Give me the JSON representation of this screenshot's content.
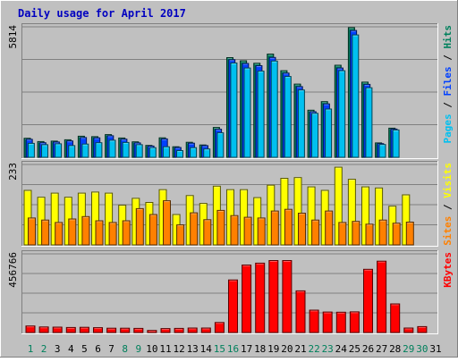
{
  "chart_data": {
    "type": "bar",
    "title": "Daily usage for April 2017",
    "categories": [
      "1",
      "2",
      "3",
      "4",
      "5",
      "6",
      "7",
      "8",
      "9",
      "10",
      "11",
      "12",
      "13",
      "14",
      "15",
      "16",
      "17",
      "18",
      "19",
      "20",
      "21",
      "22",
      "23",
      "24",
      "25",
      "26",
      "27",
      "28",
      "29",
      "30",
      "31"
    ],
    "weekend_days": [
      "1",
      "2",
      "8",
      "9",
      "15",
      "16",
      "22",
      "23",
      "29",
      "30"
    ],
    "x_tick_colors": {
      "weekday": "#000000",
      "weekend": "#00805c"
    },
    "panels": [
      {
        "name": "top",
        "ylim": [
          0,
          5814
        ],
        "max_label": "5814",
        "right_label": [
          {
            "text": "Pages",
            "color": "#00c0f0"
          },
          {
            "text": " / ",
            "color": "#000000"
          },
          {
            "text": "Files",
            "color": "#0040ff"
          },
          {
            "text": " / ",
            "color": "#000000"
          },
          {
            "text": "Hits",
            "color": "#00805c"
          }
        ],
        "series": [
          {
            "name": "Hits",
            "color": "#00805c",
            "values": [
              850,
              700,
              720,
              780,
              940,
              920,
              1010,
              860,
              690,
              530,
              870,
              470,
              670,
              550,
              1330,
              4440,
              4300,
              4190,
              4600,
              3860,
              3260,
              2100,
              2480,
              4100,
              5780,
              3350,
              640,
              1300,
              0,
              0,
              0
            ]
          },
          {
            "name": "Files",
            "color": "#0040ff",
            "values": [
              800,
              650,
              680,
              730,
              880,
              870,
              960,
              810,
              640,
              500,
              820,
              440,
              630,
              520,
              1250,
              4350,
              4180,
              4080,
              4450,
              3750,
              3150,
              2030,
              2380,
              3980,
              5650,
              3250,
              610,
              1260,
              0,
              0,
              0
            ]
          },
          {
            "name": "Pages",
            "color": "#00c0f0",
            "values": [
              620,
              560,
              600,
              520,
              590,
              650,
              760,
              660,
              560,
              430,
              470,
              300,
              430,
              370,
              1090,
              4200,
              3980,
              3840,
              4290,
              3600,
              3000,
              1960,
              2150,
              3860,
              5450,
              3100,
              570,
              1220,
              0,
              0,
              0
            ]
          }
        ]
      },
      {
        "name": "middle",
        "ylim": [
          0,
          233
        ],
        "max_label": "233",
        "right_label": [
          {
            "text": "Sites",
            "color": "#ff8000"
          },
          {
            "text": " / ",
            "color": "#000000"
          },
          {
            "text": "Visits",
            "color": "#ffff00"
          }
        ],
        "series": [
          {
            "name": "Visits",
            "color": "#ffff00",
            "values": [
              158,
              138,
              150,
              138,
              150,
              153,
              150,
              115,
              135,
              123,
              160,
              88,
              143,
              120,
              170,
              160,
              160,
              137,
              173,
              193,
              195,
              168,
              158,
              225,
              190,
              168,
              165,
              112,
              145,
              0,
              0
            ]
          },
          {
            "name": "Sites",
            "color": "#ff8000",
            "values": [
              78,
              72,
              65,
              75,
              82,
              70,
              65,
              70,
              105,
              88,
              128,
              58,
              93,
              73,
              100,
              85,
              80,
              78,
              98,
              103,
              92,
              72,
              98,
              65,
              68,
              60,
              72,
              63,
              66,
              0,
              0
            ]
          }
        ]
      },
      {
        "name": "bottom",
        "ylim": [
          0,
          456766
        ],
        "max_label": "456766",
        "right_label": [
          {
            "text": "KBytes",
            "color": "#ff0000"
          }
        ],
        "series": [
          {
            "name": "KBytes",
            "color": "#ff0000",
            "values": [
              38000,
              32000,
              31000,
              29000,
              30000,
              28000,
              25000,
              25000,
              24000,
              12000,
              23000,
              24000,
              26000,
              26000,
              58000,
              305000,
              392000,
              403000,
              418000,
              418000,
              242000,
              130000,
              119000,
              118000,
              120000,
              367000,
              414000,
              166000,
              26000,
              34000,
              0
            ]
          }
        ]
      }
    ]
  }
}
